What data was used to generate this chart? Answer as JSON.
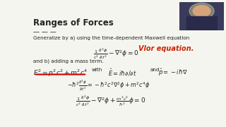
{
  "title": "Ranges of Forces",
  "bg_color": "#f5f5f0",
  "title_color": "#222222",
  "text_color": "#222222",
  "red_color": "#cc0000",
  "handwriting_color": "#cc2200",
  "dash_line": "— — —",
  "line1": "Generalize by a) using the time-dependent Maxwell equation",
  "handwriting": "Vlor equation.",
  "line2": "and b) adding a mass term.",
  "eq2_with": "with",
  "eq2_and": "and",
  "thumb_bg": "#3a3a5c",
  "thumb_face": "#d4a47a",
  "thumb_body": "#2a2a4a"
}
